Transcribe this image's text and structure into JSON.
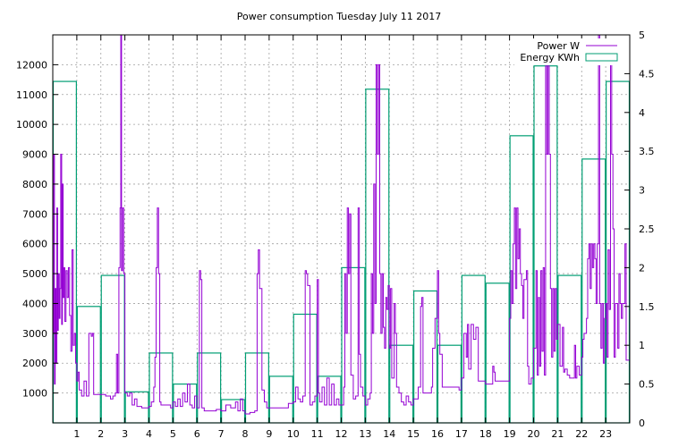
{
  "chart_data": {
    "type": "line",
    "title": "Power consumption Tuesday July 11 2017",
    "x_ticks": [
      "1",
      "2",
      "3",
      "4",
      "5",
      "6",
      "7",
      "8",
      "9",
      "10",
      "11",
      "12",
      "13",
      "14",
      "15",
      "16",
      "17",
      "18",
      "19",
      "20",
      "21",
      "22",
      "23"
    ],
    "xlim": [
      0,
      24
    ],
    "y_left_ticks": [
      "1000",
      "2000",
      "3000",
      "4000",
      "5000",
      "6000",
      "7000",
      "8000",
      "9000",
      "10000",
      "11000",
      "12000"
    ],
    "ylim_left": [
      0,
      13000
    ],
    "y_right_ticks": [
      "0",
      "0.5",
      "1",
      "1.5",
      "2",
      "2.5",
      "3",
      "3.5",
      "4",
      "4.5",
      "5"
    ],
    "ylim_right": [
      0,
      5
    ],
    "grid": true,
    "legend_position": "top-right",
    "series": [
      {
        "name": "Power W",
        "axis": "left",
        "color": "#9400d3",
        "style": "step",
        "points": [
          [
            0.0,
            3000
          ],
          [
            0.03,
            9000
          ],
          [
            0.07,
            1300
          ],
          [
            0.1,
            4500
          ],
          [
            0.13,
            2000
          ],
          [
            0.17,
            7200
          ],
          [
            0.2,
            3100
          ],
          [
            0.23,
            5000
          ],
          [
            0.27,
            3500
          ],
          [
            0.3,
            4500
          ],
          [
            0.33,
            9000
          ],
          [
            0.37,
            3300
          ],
          [
            0.4,
            8000
          ],
          [
            0.43,
            4200
          ],
          [
            0.47,
            5200
          ],
          [
            0.5,
            3400
          ],
          [
            0.55,
            5100
          ],
          [
            0.6,
            4200
          ],
          [
            0.65,
            5200
          ],
          [
            0.7,
            3600
          ],
          [
            0.75,
            2400
          ],
          [
            0.8,
            5800
          ],
          [
            0.85,
            2600
          ],
          [
            0.9,
            3000
          ],
          [
            0.95,
            2000
          ],
          [
            1.0,
            1400
          ],
          [
            1.05,
            1700
          ],
          [
            1.1,
            1100
          ],
          [
            1.2,
            900
          ],
          [
            1.3,
            1400
          ],
          [
            1.4,
            900
          ],
          [
            1.5,
            3000
          ],
          [
            1.6,
            2900
          ],
          [
            1.65,
            3000
          ],
          [
            1.7,
            950
          ],
          [
            1.9,
            950
          ],
          [
            2.0,
            950
          ],
          [
            2.2,
            900
          ],
          [
            2.4,
            800
          ],
          [
            2.5,
            900
          ],
          [
            2.6,
            1000
          ],
          [
            2.65,
            2300
          ],
          [
            2.7,
            1000
          ],
          [
            2.75,
            5200
          ],
          [
            2.8,
            7200
          ],
          [
            2.83,
            13000
          ],
          [
            2.86,
            5100
          ],
          [
            2.9,
            7200
          ],
          [
            2.95,
            5000
          ],
          [
            3.0,
            1000
          ],
          [
            3.1,
            900
          ],
          [
            3.2,
            1000
          ],
          [
            3.3,
            600
          ],
          [
            3.4,
            800
          ],
          [
            3.5,
            550
          ],
          [
            3.7,
            500
          ],
          [
            3.9,
            500
          ],
          [
            4.0,
            550
          ],
          [
            4.1,
            700
          ],
          [
            4.2,
            1200
          ],
          [
            4.25,
            2200
          ],
          [
            4.3,
            5200
          ],
          [
            4.35,
            7200
          ],
          [
            4.4,
            5000
          ],
          [
            4.45,
            700
          ],
          [
            4.5,
            600
          ],
          [
            4.7,
            600
          ],
          [
            4.9,
            500
          ],
          [
            5.0,
            700
          ],
          [
            5.1,
            550
          ],
          [
            5.2,
            800
          ],
          [
            5.3,
            550
          ],
          [
            5.4,
            1000
          ],
          [
            5.5,
            700
          ],
          [
            5.6,
            1300
          ],
          [
            5.7,
            600
          ],
          [
            5.8,
            500
          ],
          [
            5.9,
            900
          ],
          [
            6.0,
            500
          ],
          [
            6.1,
            5100
          ],
          [
            6.15,
            4800
          ],
          [
            6.2,
            500
          ],
          [
            6.3,
            400
          ],
          [
            6.6,
            400
          ],
          [
            6.8,
            450
          ],
          [
            7.0,
            400
          ],
          [
            7.2,
            600
          ],
          [
            7.4,
            500
          ],
          [
            7.6,
            700
          ],
          [
            7.7,
            400
          ],
          [
            7.8,
            800
          ],
          [
            7.9,
            400
          ],
          [
            8.0,
            300
          ],
          [
            8.2,
            350
          ],
          [
            8.4,
            400
          ],
          [
            8.5,
            5000
          ],
          [
            8.55,
            5800
          ],
          [
            8.6,
            4500
          ],
          [
            8.7,
            1100
          ],
          [
            8.8,
            700
          ],
          [
            8.9,
            500
          ],
          [
            9.0,
            500
          ],
          [
            9.3,
            500
          ],
          [
            9.6,
            500
          ],
          [
            9.8,
            650
          ],
          [
            10.0,
            700
          ],
          [
            10.1,
            1200
          ],
          [
            10.2,
            800
          ],
          [
            10.3,
            700
          ],
          [
            10.4,
            900
          ],
          [
            10.5,
            5100
          ],
          [
            10.55,
            5000
          ],
          [
            10.6,
            4600
          ],
          [
            10.7,
            600
          ],
          [
            10.8,
            700
          ],
          [
            10.9,
            900
          ],
          [
            11.0,
            4800
          ],
          [
            11.05,
            1000
          ],
          [
            11.1,
            700
          ],
          [
            11.2,
            1200
          ],
          [
            11.3,
            600
          ],
          [
            11.4,
            1500
          ],
          [
            11.5,
            600
          ],
          [
            11.6,
            1300
          ],
          [
            11.7,
            600
          ],
          [
            11.8,
            800
          ],
          [
            11.9,
            600
          ],
          [
            12.0,
            600
          ],
          [
            12.1,
            1200
          ],
          [
            12.15,
            5000
          ],
          [
            12.2,
            3000
          ],
          [
            12.25,
            7200
          ],
          [
            12.3,
            5000
          ],
          [
            12.35,
            7000
          ],
          [
            12.4,
            1600
          ],
          [
            12.5,
            800
          ],
          [
            12.6,
            900
          ],
          [
            12.7,
            7200
          ],
          [
            12.75,
            2300
          ],
          [
            12.8,
            1200
          ],
          [
            12.9,
            900
          ],
          [
            13.0,
            600
          ],
          [
            13.1,
            800
          ],
          [
            13.2,
            1000
          ],
          [
            13.25,
            5000
          ],
          [
            13.3,
            3000
          ],
          [
            13.35,
            8000
          ],
          [
            13.4,
            4000
          ],
          [
            13.45,
            12000
          ],
          [
            13.5,
            9000
          ],
          [
            13.55,
            12000
          ],
          [
            13.6,
            5000
          ],
          [
            13.65,
            3000
          ],
          [
            13.7,
            5000
          ],
          [
            13.75,
            3200
          ],
          [
            13.8,
            2500
          ],
          [
            13.85,
            4200
          ],
          [
            13.9,
            3800
          ],
          [
            13.95,
            4600
          ],
          [
            14.0,
            2500
          ],
          [
            14.05,
            4500
          ],
          [
            14.1,
            1500
          ],
          [
            14.2,
            4000
          ],
          [
            14.25,
            3000
          ],
          [
            14.3,
            1200
          ],
          [
            14.4,
            1000
          ],
          [
            14.5,
            700
          ],
          [
            14.6,
            600
          ],
          [
            14.7,
            900
          ],
          [
            14.8,
            700
          ],
          [
            14.9,
            600
          ],
          [
            15.0,
            800
          ],
          [
            15.2,
            1200
          ],
          [
            15.3,
            3900
          ],
          [
            15.35,
            4200
          ],
          [
            15.4,
            1000
          ],
          [
            15.6,
            1000
          ],
          [
            15.75,
            1200
          ],
          [
            15.8,
            2500
          ],
          [
            15.9,
            3500
          ],
          [
            16.0,
            5100
          ],
          [
            16.05,
            3000
          ],
          [
            16.1,
            2300
          ],
          [
            16.2,
            1200
          ],
          [
            16.6,
            1200
          ],
          [
            16.8,
            1200
          ],
          [
            16.9,
            1100
          ],
          [
            17.0,
            1500
          ],
          [
            17.1,
            3000
          ],
          [
            17.2,
            2200
          ],
          [
            17.25,
            3300
          ],
          [
            17.3,
            1800
          ],
          [
            17.4,
            3300
          ],
          [
            17.5,
            2800
          ],
          [
            17.6,
            3200
          ],
          [
            17.7,
            1400
          ],
          [
            17.8,
            1400
          ],
          [
            18.0,
            1300
          ],
          [
            18.2,
            1300
          ],
          [
            18.3,
            1900
          ],
          [
            18.35,
            1700
          ],
          [
            18.4,
            1400
          ],
          [
            18.8,
            1400
          ],
          [
            19.0,
            3500
          ],
          [
            19.05,
            5100
          ],
          [
            19.1,
            4000
          ],
          [
            19.15,
            6000
          ],
          [
            19.2,
            7200
          ],
          [
            19.25,
            4500
          ],
          [
            19.3,
            7200
          ],
          [
            19.35,
            5500
          ],
          [
            19.4,
            6500
          ],
          [
            19.45,
            5000
          ],
          [
            19.5,
            4600
          ],
          [
            19.55,
            3500
          ],
          [
            19.6,
            4800
          ],
          [
            19.7,
            5100
          ],
          [
            19.75,
            1900
          ],
          [
            19.8,
            1300
          ],
          [
            19.9,
            1500
          ],
          [
            20.0,
            2500
          ],
          [
            20.1,
            5100
          ],
          [
            20.15,
            1600
          ],
          [
            20.2,
            4200
          ],
          [
            20.25,
            1900
          ],
          [
            20.3,
            5100
          ],
          [
            20.35,
            2400
          ],
          [
            20.4,
            5200
          ],
          [
            20.45,
            1600
          ],
          [
            20.5,
            12000
          ],
          [
            20.55,
            9000
          ],
          [
            20.6,
            12000
          ],
          [
            20.65,
            9000
          ],
          [
            20.7,
            4500
          ],
          [
            20.75,
            2200
          ],
          [
            20.8,
            4500
          ],
          [
            20.85,
            2400
          ],
          [
            20.9,
            4500
          ],
          [
            20.95,
            2800
          ],
          [
            21.0,
            3300
          ],
          [
            21.1,
            1900
          ],
          [
            21.2,
            3200
          ],
          [
            21.25,
            1700
          ],
          [
            21.3,
            1800
          ],
          [
            21.4,
            1600
          ],
          [
            21.5,
            1500
          ],
          [
            21.6,
            1500
          ],
          [
            21.7,
            2600
          ],
          [
            21.75,
            1500
          ],
          [
            21.8,
            1900
          ],
          [
            21.9,
            1600
          ],
          [
            22.0,
            2200
          ],
          [
            22.05,
            2800
          ],
          [
            22.1,
            3000
          ],
          [
            22.2,
            3500
          ],
          [
            22.25,
            5500
          ],
          [
            22.3,
            6000
          ],
          [
            22.35,
            4500
          ],
          [
            22.4,
            6000
          ],
          [
            22.45,
            5200
          ],
          [
            22.5,
            6000
          ],
          [
            22.55,
            5500
          ],
          [
            22.6,
            4000
          ],
          [
            22.65,
            6000
          ],
          [
            22.7,
            13000
          ],
          [
            22.75,
            4000
          ],
          [
            22.8,
            2500
          ],
          [
            22.85,
            4000
          ],
          [
            22.9,
            2000
          ],
          [
            22.95,
            3500
          ],
          [
            23.0,
            4000
          ],
          [
            23.05,
            2200
          ],
          [
            23.1,
            5800
          ],
          [
            23.15,
            3800
          ],
          [
            23.2,
            12000
          ],
          [
            23.25,
            9000
          ],
          [
            23.3,
            6500
          ],
          [
            23.35,
            2200
          ],
          [
            23.4,
            4000
          ],
          [
            23.5,
            2500
          ],
          [
            23.55,
            5000
          ],
          [
            23.6,
            4000
          ],
          [
            23.65,
            3500
          ],
          [
            23.7,
            4000
          ],
          [
            23.75,
            4000
          ],
          [
            23.8,
            6000
          ],
          [
            23.85,
            2100
          ],
          [
            23.9,
            2100
          ],
          [
            24.0,
            2100
          ]
        ]
      },
      {
        "name": "Energy KWh",
        "axis": "right",
        "color": "#009e73",
        "style": "boxes",
        "values": [
          4.4,
          1.5,
          1.9,
          0.4,
          0.9,
          0.5,
          0.9,
          0.3,
          0.9,
          0.6,
          1.4,
          0.6,
          2.0,
          4.3,
          1.0,
          1.7,
          1.0,
          1.9,
          1.8,
          3.7,
          4.6,
          1.9,
          3.4,
          4.4
        ]
      }
    ]
  }
}
